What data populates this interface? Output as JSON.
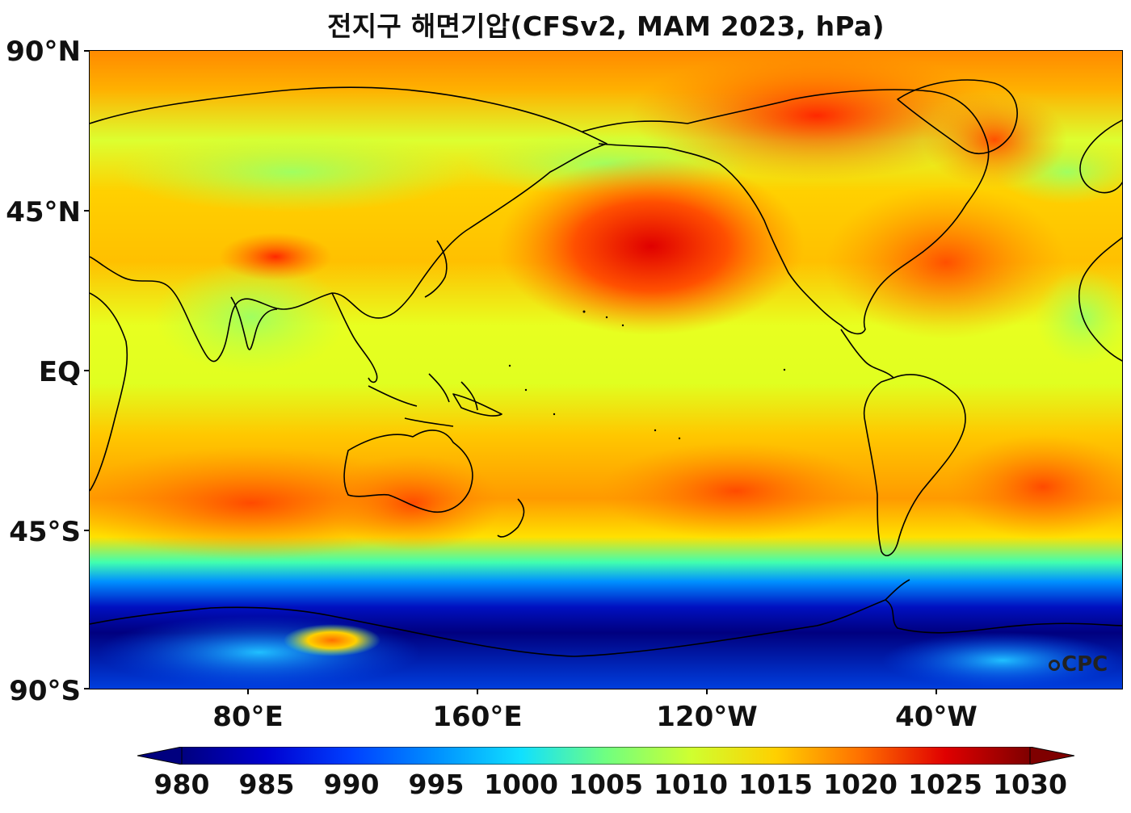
{
  "title": "전지구 해면기압(CFSv2, MAM 2023, hPa)",
  "latitude_labels": [
    "90°N",
    "45°N",
    "EQ",
    "45°S",
    "90°S"
  ],
  "longitude_labels": [
    "80°E",
    "160°E",
    "120°W",
    "40°W"
  ],
  "colorbar": {
    "ticks": [
      "980",
      "985",
      "990",
      "995",
      "1000",
      "1005",
      "1010",
      "1015",
      "1020",
      "1025",
      "1030"
    ],
    "colors": [
      "#00007f",
      "#0000d0",
      "#0040ff",
      "#0090ff",
      "#10e0ff",
      "#70ff80",
      "#cfff30",
      "#ffd000",
      "#ff7000",
      "#e00000",
      "#7f0000"
    ]
  },
  "watermark": "CPC"
}
